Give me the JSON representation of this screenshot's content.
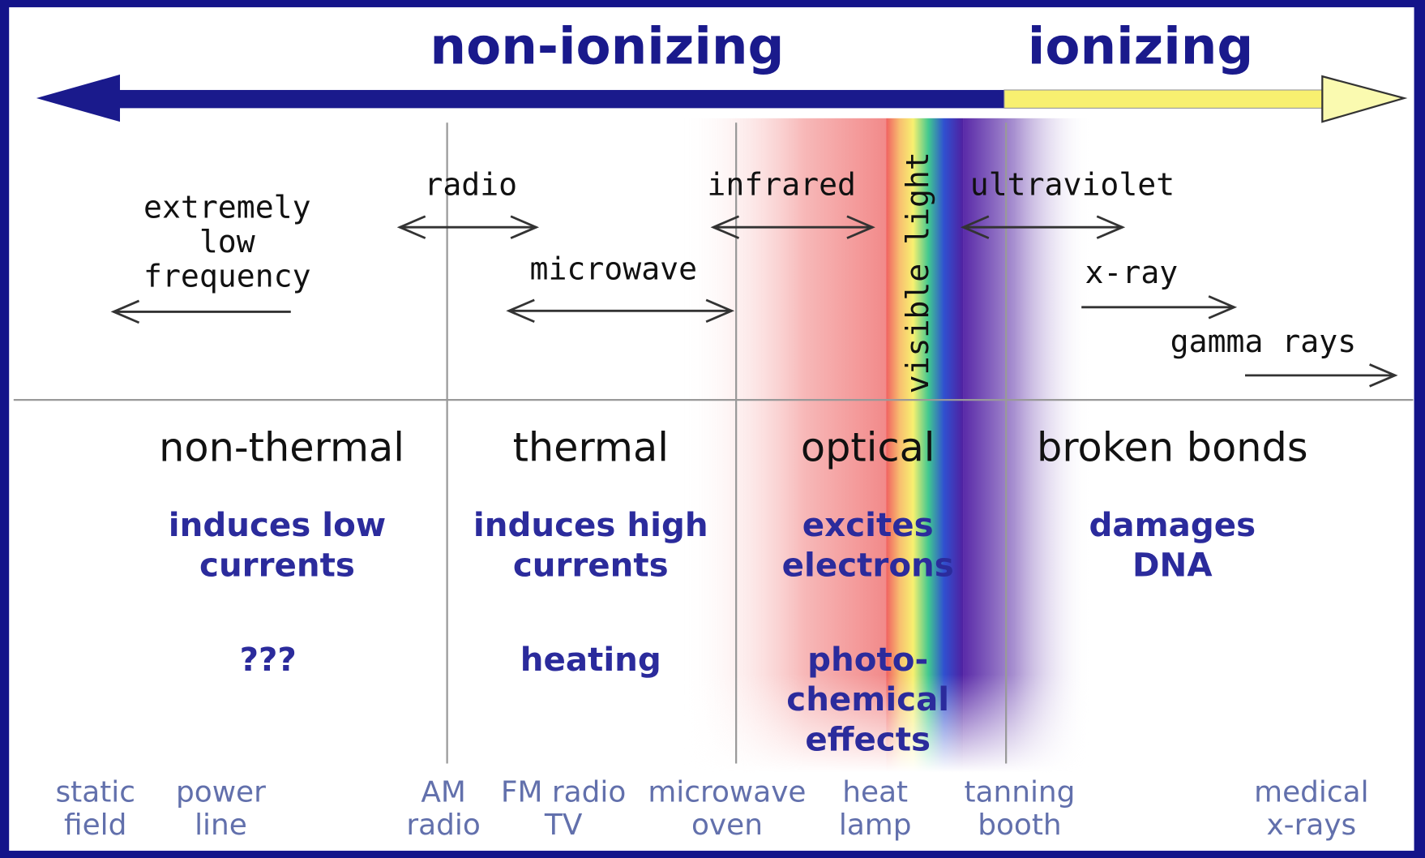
{
  "header": {
    "non_ionizing": "non-ionizing",
    "ionizing": "ionizing"
  },
  "bands": [
    {
      "lines": [
        "extremely",
        "low",
        "frequency"
      ]
    },
    {
      "lines": [
        "radio"
      ]
    },
    {
      "lines": [
        "microwave"
      ]
    },
    {
      "lines": [
        "infrared"
      ]
    },
    {
      "lines": [
        "visible light"
      ]
    },
    {
      "lines": [
        "ultraviolet"
      ]
    },
    {
      "lines": [
        "x-ray"
      ]
    },
    {
      "lines": [
        "gamma rays"
      ]
    }
  ],
  "columns": [
    {
      "title": "non-thermal",
      "effect": [
        "induces low",
        "currents"
      ],
      "note": [
        "???"
      ]
    },
    {
      "title": "thermal",
      "effect": [
        "induces high",
        "currents"
      ],
      "note": [
        "heating"
      ]
    },
    {
      "title": "optical",
      "effect": [
        "excites",
        "electrons"
      ],
      "note": [
        "photo-",
        "chemical",
        "effects"
      ]
    },
    {
      "title": "broken bonds",
      "effect": [
        "damages",
        "DNA"
      ],
      "note": []
    }
  ],
  "sources": [
    {
      "lines": [
        "static",
        "field"
      ]
    },
    {
      "lines": [
        "power",
        "line"
      ]
    },
    {
      "lines": [
        "AM",
        "radio"
      ]
    },
    {
      "lines": [
        "FM radio",
        "TV"
      ]
    },
    {
      "lines": [
        "microwave",
        "oven"
      ]
    },
    {
      "lines": [
        "heat",
        "lamp"
      ]
    },
    {
      "lines": [
        "tanning",
        "booth"
      ]
    },
    {
      "lines": [
        "medical",
        "x-rays"
      ]
    }
  ]
}
